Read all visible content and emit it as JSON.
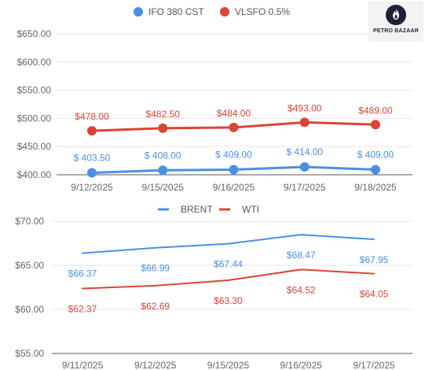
{
  "brand": {
    "name": "PETRO BAZAAR"
  },
  "chart_data": [
    {
      "type": "line",
      "categories": [
        "9/12/2025",
        "9/15/2025",
        "9/16/2025",
        "9/17/2025",
        "9/18/2025"
      ],
      "series": [
        {
          "name": "IFO 380 CST",
          "color": "#4a90e2",
          "values": [
            403.5,
            408.0,
            409.0,
            414.0,
            409.0
          ],
          "labels": [
            "$ 403.50",
            "$ 408.00",
            "$ 409.00",
            "$ 414.00",
            "$ 409.00"
          ]
        },
        {
          "name": "VLSFO 0.5%",
          "color": "#db4437",
          "values": [
            478.0,
            482.5,
            484.0,
            493.0,
            489.0
          ],
          "labels": [
            "$478.00",
            "$482.50",
            "$484.00",
            "$493.00",
            "$489.00"
          ]
        }
      ],
      "ylim": [
        400,
        650
      ],
      "yticks": [
        400,
        450,
        500,
        550,
        600,
        650
      ],
      "ytick_labels": [
        "$400.00",
        "$450.00",
        "$500.00",
        "$550.00",
        "$600.00",
        "$650.00"
      ],
      "legend": "top",
      "grid": true,
      "markers": true
    },
    {
      "type": "line",
      "categories": [
        "9/11/2025",
        "9/12/2025",
        "9/15/2025",
        "9/16/2025",
        "9/17/2025"
      ],
      "series": [
        {
          "name": "BRENT",
          "color": "#4a90e2",
          "values": [
            66.37,
            66.99,
            67.44,
            68.47,
            67.95
          ],
          "labels": [
            "$66.37",
            "$66.99",
            "$67.44",
            "$68.47",
            "$67.95"
          ]
        },
        {
          "name": "WTI",
          "color": "#db4437",
          "values": [
            62.37,
            62.69,
            63.3,
            64.52,
            64.05
          ],
          "labels": [
            "$62.37",
            "$62.69",
            "$63.30",
            "$64.52",
            "$64.05"
          ]
        }
      ],
      "ylim": [
        55,
        70
      ],
      "yticks": [
        55,
        60,
        65,
        70
      ],
      "ytick_labels": [
        "$55.00",
        "$60.00",
        "$65.00",
        "$70.00"
      ],
      "legend": "top",
      "grid": true,
      "markers": false
    }
  ]
}
